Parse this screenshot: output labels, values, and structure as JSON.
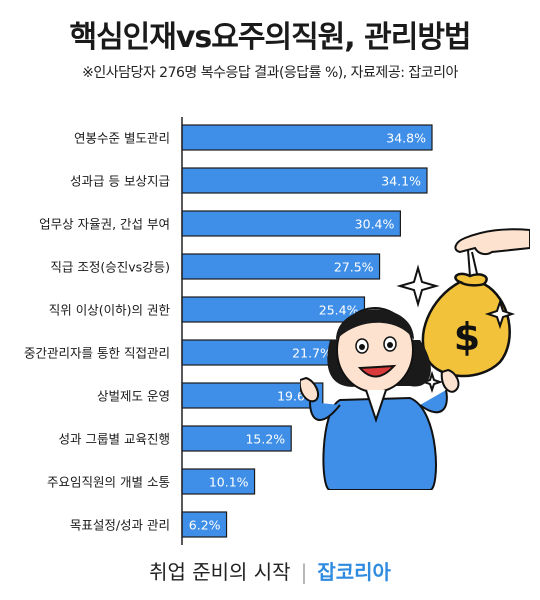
{
  "title": "핵심인재vs요주의직원, 관리방법",
  "subtitle": "※인사담당자 276명 복수응답 결과(응답률 %),  자료제공: 잡코리아",
  "footer": {
    "tagline": "취업 준비의 시작",
    "separator": "|",
    "brand": "잡코리아"
  },
  "colors": {
    "bar": "#3f8fe8",
    "bar_edge": "#1a1a1a",
    "axis": "#222222",
    "brand": "#2f8be0"
  },
  "chart_data": {
    "type": "bar",
    "orientation": "horizontal",
    "categories": [
      "연봉수준 별도관리",
      "성과급 등 보상지급",
      "업무상 자율권, 간섭 부여",
      "직급 조정(승진vs강등)",
      "직위 이상(이하)의 권한",
      "중간관리자를 통한 직접관리",
      "상벌제도 운영",
      "성과 그룹별 교육진행",
      "주요임직원의 개별 소통",
      "목표설정/성과 관리"
    ],
    "values": [
      34.8,
      34.1,
      30.4,
      27.5,
      25.4,
      21.7,
      19.6,
      15.2,
      10.1,
      6.2
    ],
    "value_labels": [
      "34.8%",
      "34.1%",
      "30.4%",
      "27.5%",
      "25.4%",
      "21.7%",
      "19.6%",
      "15.2%",
      "10.1%",
      "6.2%"
    ],
    "xlim": [
      0,
      40
    ]
  }
}
